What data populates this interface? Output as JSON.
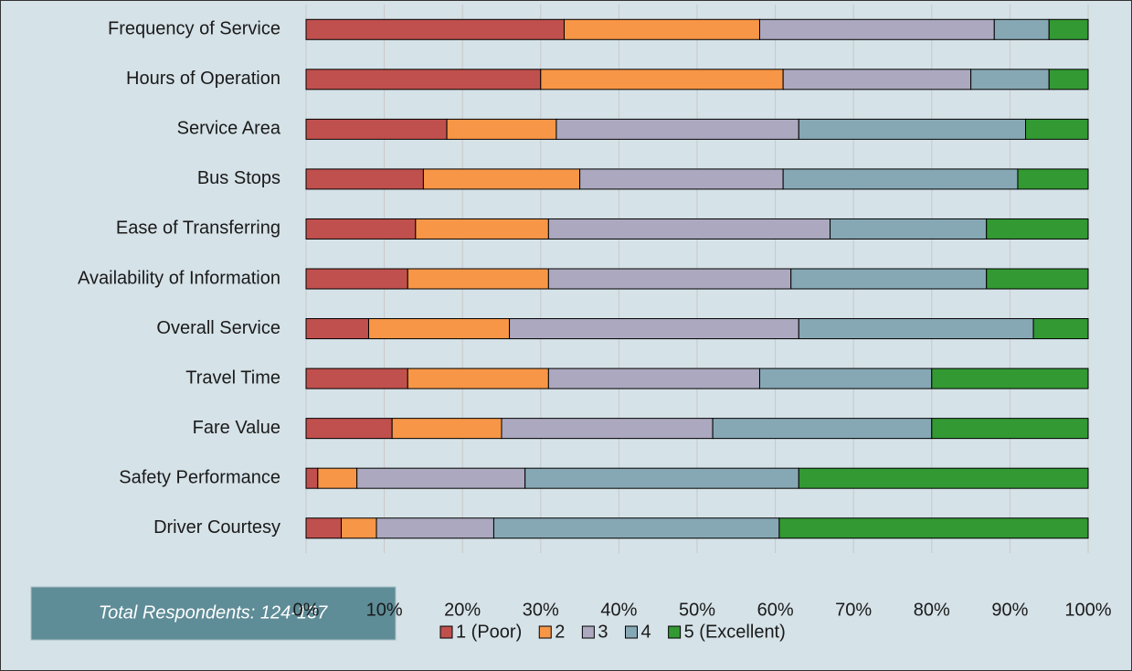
{
  "chart_data": {
    "type": "stacked_barh",
    "categories": [
      "Frequency of Service",
      "Hours of Operation",
      "Service Area",
      "Bus Stops",
      "Ease of Transferring",
      "Availability of Information",
      "Overall Service",
      "Travel Time",
      "Fare Value",
      "Safety Performance",
      "Driver Courtesy"
    ],
    "series": [
      {
        "name": "1 (Poor)",
        "color": "#c0504d",
        "values": [
          33,
          30,
          18,
          15,
          14,
          13,
          8,
          13,
          11,
          1.5,
          4.5
        ]
      },
      {
        "name": "2",
        "color": "#f79646",
        "values": [
          25,
          31,
          14,
          20,
          17,
          18,
          18,
          18,
          14,
          5,
          4.5
        ]
      },
      {
        "name": "3",
        "color": "#aba8bf",
        "values": [
          30,
          24,
          31,
          26,
          36,
          31,
          37,
          27,
          27,
          21.5,
          15
        ]
      },
      {
        "name": "4",
        "color": "#86a8b4",
        "values": [
          7,
          10,
          29,
          30,
          20,
          25,
          30,
          22,
          28,
          35,
          36.5
        ]
      },
      {
        "name": "5 (Excellent)",
        "color": "#339933",
        "values": [
          5,
          5,
          8,
          9,
          13,
          13,
          7,
          20,
          20,
          37,
          39.5
        ]
      }
    ],
    "xlim": [
      0,
      100
    ],
    "xticks": [
      {
        "value": 0,
        "label": "0%"
      },
      {
        "value": 10,
        "label": "10%"
      },
      {
        "value": 20,
        "label": "20%"
      },
      {
        "value": 30,
        "label": "30%"
      },
      {
        "value": 40,
        "label": "40%"
      },
      {
        "value": 50,
        "label": "50%"
      },
      {
        "value": 60,
        "label": "60%"
      },
      {
        "value": 70,
        "label": "70%"
      },
      {
        "value": 80,
        "label": "80%"
      },
      {
        "value": 90,
        "label": "90%"
      },
      {
        "value": 100,
        "label": "100%"
      }
    ],
    "grid": true,
    "annotation": "Total Respondents: 124-137",
    "legend": "bottom"
  }
}
